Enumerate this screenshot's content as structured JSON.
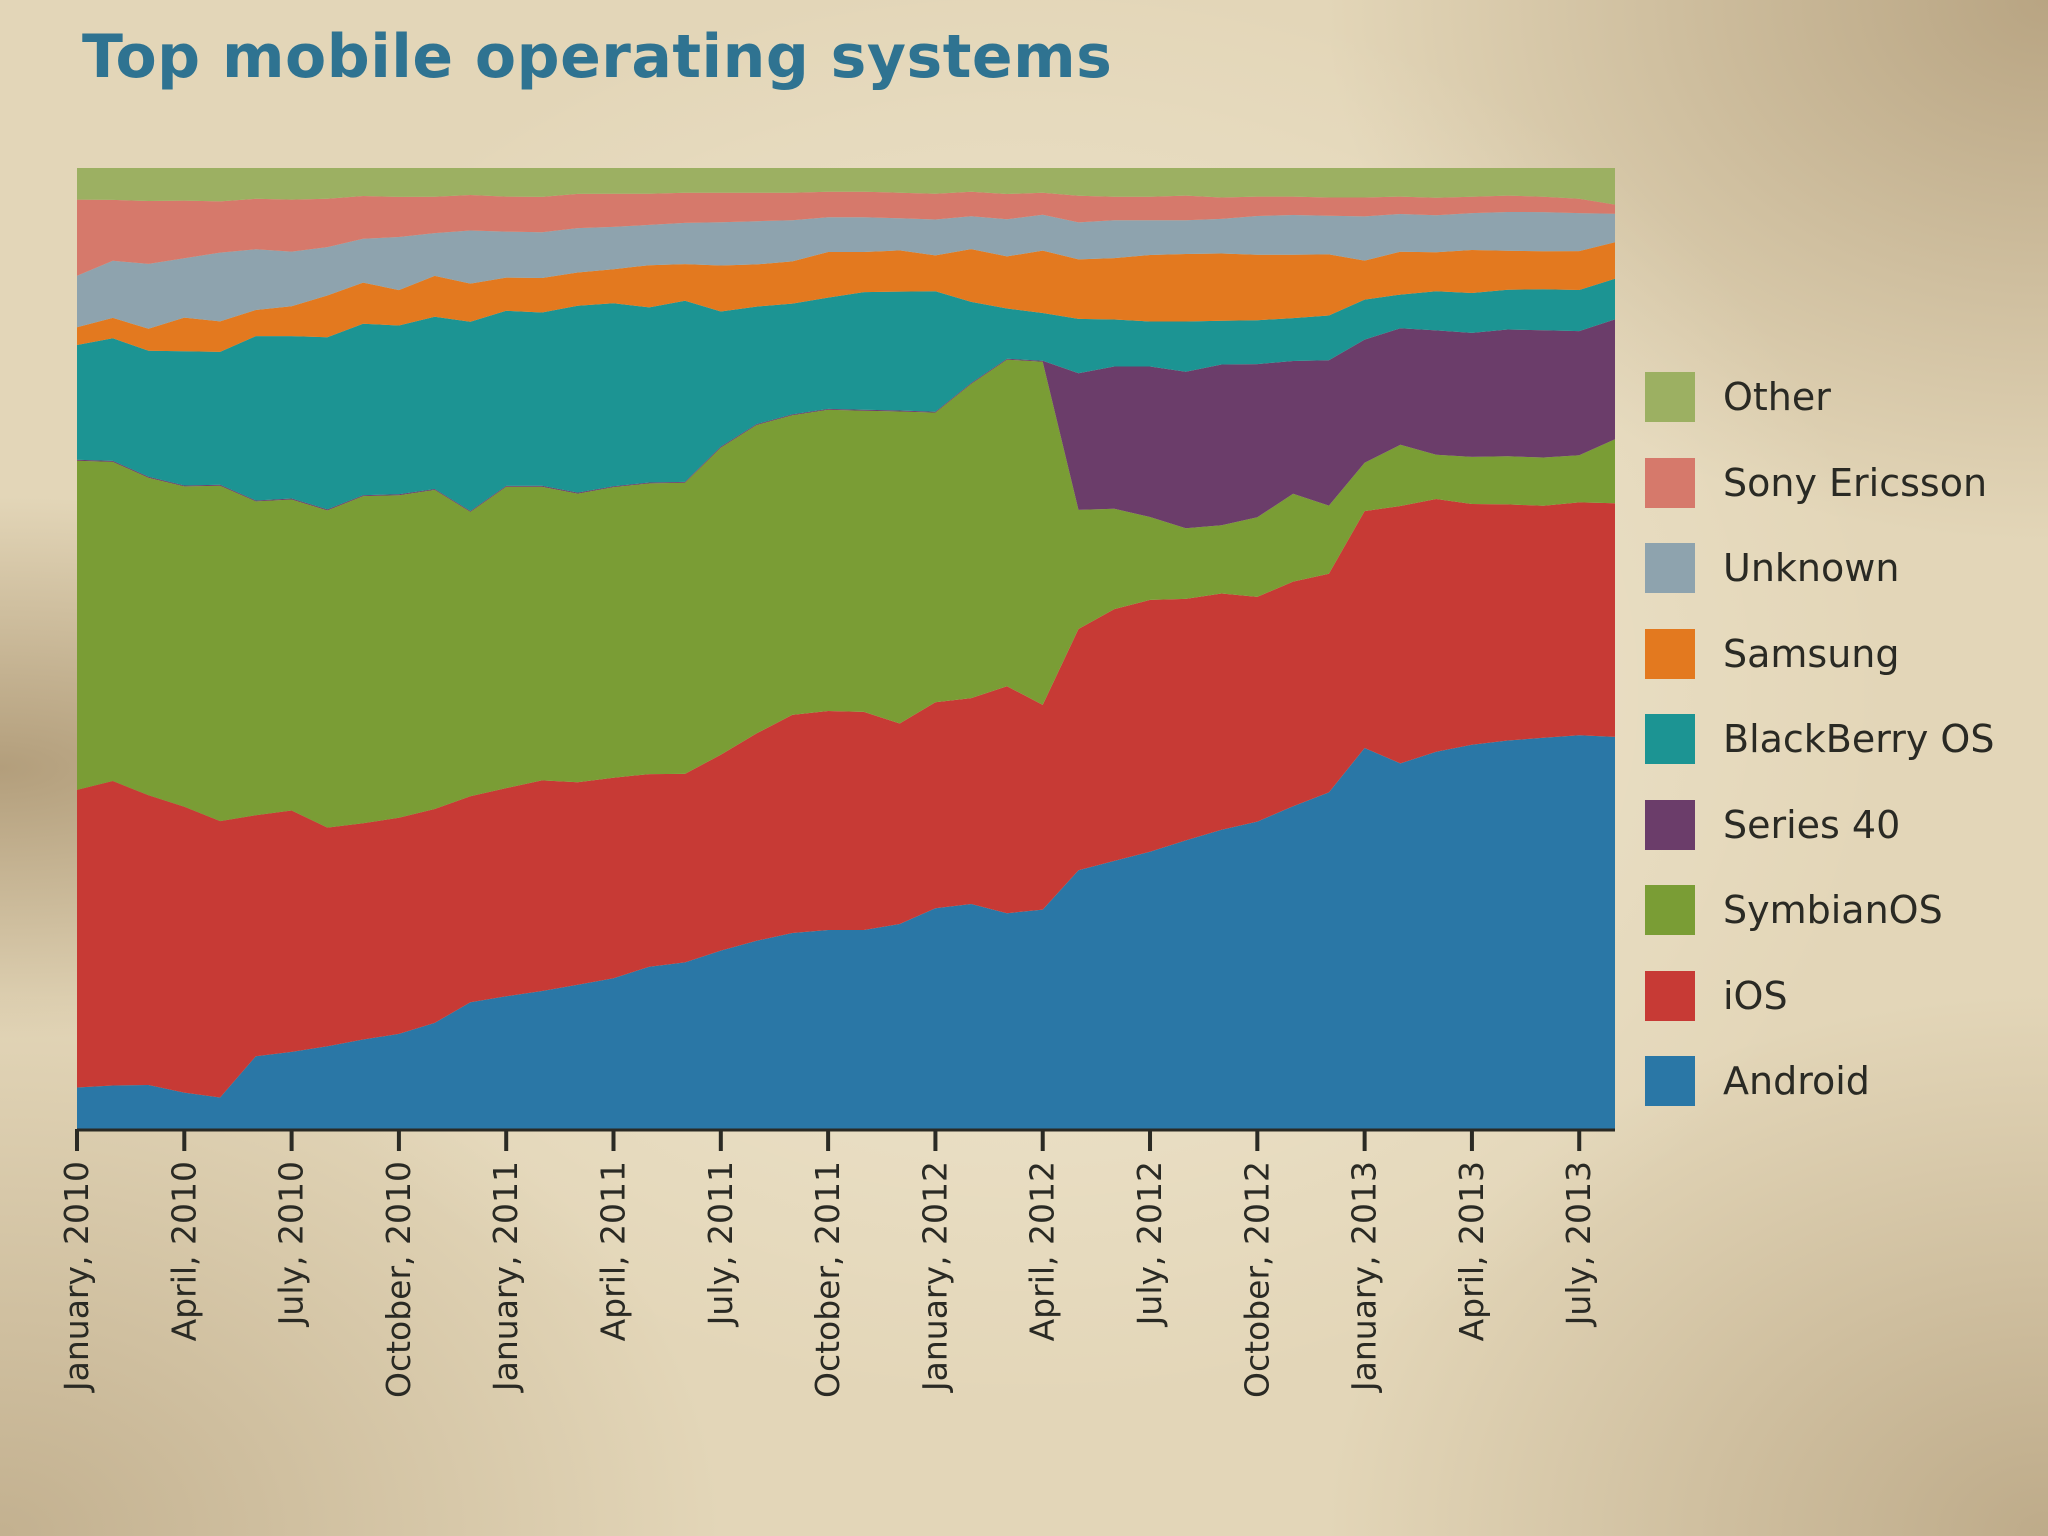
{
  "chart_data": {
    "type": "area",
    "stacked": true,
    "normalized": true,
    "title": "Top mobile operating systems",
    "xlabel": "",
    "ylabel": "",
    "ylim": [
      0,
      100
    ],
    "grid": false,
    "legend_position": "right",
    "x": [
      "2010-01",
      "2010-02",
      "2010-03",
      "2010-04",
      "2010-05",
      "2010-06",
      "2010-07",
      "2010-08",
      "2010-09",
      "2010-10",
      "2010-11",
      "2010-12",
      "2011-01",
      "2011-02",
      "2011-03",
      "2011-04",
      "2011-05",
      "2011-06",
      "2011-07",
      "2011-08",
      "2011-09",
      "2011-10",
      "2011-11",
      "2011-12",
      "2012-01",
      "2012-02",
      "2012-03",
      "2012-04",
      "2012-05",
      "2012-06",
      "2012-07",
      "2012-08",
      "2012-09",
      "2012-10",
      "2012-11",
      "2012-12",
      "2013-01",
      "2013-02",
      "2013-03",
      "2013-04",
      "2013-05",
      "2013-06",
      "2013-07",
      "2013-08"
    ],
    "tick_labels": [
      "January, 2010",
      "April, 2010",
      "July, 2010",
      "October, 2010",
      "January, 2011",
      "April, 2011",
      "July, 2011",
      "October, 2011",
      "January, 2012",
      "April, 2012",
      "July, 2012",
      "October, 2012",
      "January, 2013",
      "April, 2013",
      "July, 2013"
    ],
    "tick_positions": [
      0,
      3,
      6,
      9,
      12,
      15,
      18,
      21,
      24,
      27,
      30,
      33,
      36,
      39,
      42
    ],
    "series": [
      {
        "name": "Android",
        "color": "#2a77a6",
        "values": [
          4.2,
          4.5,
          4.4,
          3.8,
          3.2,
          7.8,
          8.3,
          8.9,
          9.6,
          10.2,
          11.4,
          13.6,
          14.4,
          14.8,
          15.6,
          16.4,
          17.7,
          18.2,
          19.4,
          20.5,
          21.4,
          21.8,
          21.8,
          22.4,
          24.0,
          24.7,
          23.2,
          23.9,
          25.2,
          26.2,
          27.1,
          28.2,
          29.4,
          30.1,
          31.6,
          33.1,
          36.2,
          35.8,
          36.7,
          37.5,
          38.0,
          38.1,
          38.4,
          38.6
        ]
      },
      {
        "name": "iOS",
        "color": "#c73a35",
        "values": [
          30.1,
          31.5,
          29.0,
          29.8,
          28.1,
          25.8,
          26.0,
          23.5,
          23.2,
          23.2,
          23.0,
          22.1,
          22.6,
          22.6,
          21.9,
          21.8,
          21.0,
          20.6,
          21.3,
          22.6,
          23.8,
          24.0,
          23.9,
          21.9,
          22.4,
          22.6,
          24.4,
          22.3,
          23.5,
          24.6,
          24.6,
          23.6,
          23.2,
          22.0,
          22.0,
          21.5,
          22.5,
          25.2,
          24.6,
          23.5,
          23.1,
          22.6,
          22.7,
          23.0
        ]
      },
      {
        "name": "SymbianOS",
        "color": "#7a9d35",
        "values": [
          33.3,
          33.0,
          31.8,
          33.4,
          34.1,
          33.6,
          33.5,
          34.1,
          35.1,
          34.6,
          34.3,
          30.5,
          32.7,
          31.5,
          31.2,
          31.6,
          31.7,
          31.8,
          33.4,
          33.6,
          32.7,
          33.0,
          33.0,
          34.1,
          31.5,
          34.5,
          35.1,
          37.4,
          11.6,
          9.8,
          8.1,
          6.9,
          6.7,
          7.8,
          8.6,
          6.7,
          4.6,
          6.0,
          4.3,
          4.6,
          4.7,
          4.7,
          4.6,
          6.3
        ]
      },
      {
        "name": "Series 40",
        "color": "#6b3d6a",
        "values": [
          0.1,
          0.1,
          0.1,
          0.1,
          0.1,
          0.1,
          0.1,
          0.1,
          0.1,
          0.1,
          0.1,
          0.1,
          0.1,
          0.1,
          0.1,
          0.1,
          0.1,
          0.1,
          0.1,
          0.1,
          0.1,
          0.1,
          0.1,
          0.1,
          0.1,
          0.1,
          0.1,
          0.1,
          13.3,
          13.9,
          14.7,
          15.3,
          15.8,
          15.0,
          13.0,
          14.3,
          11.7,
          11.4,
          12.1,
          12.1,
          12.4,
          12.4,
          12.1,
          11.8
        ]
      },
      {
        "name": "BlackBerry OS",
        "color": "#1c9493",
        "values": [
          11.6,
          12.7,
          12.6,
          14.0,
          13.5,
          17.6,
          17.5,
          18.5,
          18.4,
          18.1,
          18.5,
          20.3,
          19.0,
          18.6,
          20.2,
          19.9,
          19.1,
          19.8,
          14.7,
          12.8,
          12.1,
          12.2,
          12.9,
          13.0,
          13.1,
          8.9,
          5.4,
          5.2,
          5.3,
          4.6,
          4.4,
          4.9,
          4.3,
          4.3,
          4.2,
          4.4,
          3.8,
          3.3,
          3.8,
          3.9,
          3.9,
          4.0,
          4.0,
          4.0
        ]
      },
      {
        "name": "Samsung",
        "color": "#e3791f",
        "values": [
          1.8,
          2.1,
          2.2,
          3.5,
          3.1,
          2.8,
          3.2,
          4.5,
          4.4,
          3.8,
          4.4,
          4.1,
          3.6,
          3.7,
          3.6,
          3.7,
          4.6,
          4.0,
          5.0,
          4.6,
          4.6,
          5.0,
          4.4,
          4.5,
          3.9,
          5.8,
          5.6,
          6.8,
          5.8,
          6.0,
          6.5,
          6.6,
          6.6,
          6.4,
          6.2,
          6.0,
          3.7,
          4.2,
          3.8,
          4.2,
          3.8,
          3.7,
          3.8,
          3.6
        ]
      },
      {
        "name": "Unknown",
        "color": "#8ea3ae",
        "values": [
          5.2,
          5.9,
          6.5,
          6.2,
          7.0,
          6.5,
          5.9,
          5.2,
          4.7,
          5.7,
          4.6,
          5.7,
          5.0,
          4.9,
          4.8,
          4.6,
          4.4,
          4.5,
          4.7,
          4.7,
          4.5,
          3.8,
          3.8,
          3.5,
          3.9,
          3.6,
          4.0,
          3.9,
          3.6,
          3.7,
          3.4,
          3.3,
          3.4,
          3.8,
          3.9,
          3.8,
          4.2,
          3.7,
          3.6,
          3.6,
          3.8,
          3.8,
          3.7,
          2.8
        ]
      },
      {
        "name": "Sony Ericsson",
        "color": "#d6796b",
        "values": [
          7.7,
          6.3,
          6.3,
          6.0,
          5.2,
          5.4,
          5.6,
          5.2,
          4.6,
          4.3,
          3.9,
          3.8,
          3.8,
          3.8,
          3.7,
          3.6,
          3.4,
          3.3,
          3.2,
          3.1,
          3.0,
          2.8,
          2.8,
          2.8,
          2.8,
          2.7,
          2.7,
          2.4,
          2.6,
          2.3,
          2.3,
          2.4,
          2.1,
          1.9,
          1.8,
          1.8,
          1.8,
          1.7,
          1.7,
          1.6,
          1.6,
          1.5,
          1.4,
          0.9
        ]
      },
      {
        "name": "Other",
        "color": "#9cb062",
        "values": [
          3.2,
          3.3,
          3.3,
          3.4,
          3.4,
          3.3,
          3.4,
          3.3,
          3.0,
          3.1,
          3.1,
          2.9,
          3.1,
          3.1,
          2.8,
          2.8,
          2.8,
          2.7,
          2.7,
          2.7,
          2.7,
          2.6,
          2.6,
          2.7,
          2.8,
          2.6,
          2.8,
          2.7,
          2.7,
          2.8,
          2.8,
          2.7,
          2.9,
          2.8,
          2.8,
          2.9,
          2.8,
          2.8,
          2.9,
          2.8,
          2.7,
          2.8,
          3.0,
          3.6
        ]
      }
    ]
  }
}
